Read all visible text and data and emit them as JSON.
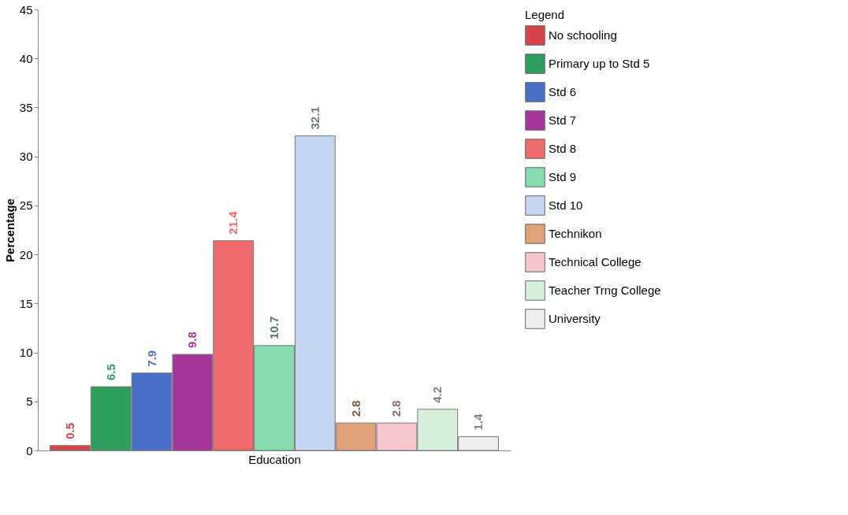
{
  "chart_data": {
    "type": "bar",
    "xlabel": "Education",
    "ylabel": "Percentage",
    "legend_title": "Legend",
    "categories": [
      null,
      null,
      null,
      null,
      null,
      null,
      null,
      null,
      null,
      null,
      null
    ],
    "series": [
      {
        "name": "No schooling",
        "color": "#d9434a",
        "values": [
          0.5,
          null,
          null,
          null,
          null,
          null,
          null,
          null,
          null,
          null,
          null
        ]
      },
      {
        "name": "Primary up to Std 5",
        "color": "#2e9e5e",
        "values": [
          null,
          6.5,
          null,
          null,
          null,
          null,
          null,
          null,
          null,
          null,
          null
        ]
      },
      {
        "name": "Std 6",
        "color": "#4a6fc9",
        "values": [
          null,
          null,
          7.9,
          null,
          null,
          null,
          null,
          null,
          null,
          null,
          null
        ]
      },
      {
        "name": "Std 7",
        "color": "#a6379a",
        "values": [
          null,
          null,
          null,
          9.8,
          null,
          null,
          null,
          null,
          null,
          null,
          null
        ]
      },
      {
        "name": "Std 8",
        "color": "#ef6b6b",
        "values": [
          null,
          null,
          null,
          null,
          21.4,
          null,
          null,
          null,
          null,
          null,
          null
        ]
      },
      {
        "name": "Std 9",
        "color": "#86dcae",
        "values": [
          null,
          null,
          null,
          null,
          null,
          10.7,
          null,
          null,
          null,
          null,
          null
        ]
      },
      {
        "name": "Std 10",
        "color": "#c6d6f2",
        "values": [
          null,
          null,
          null,
          null,
          null,
          null,
          32.1,
          null,
          null,
          null,
          null
        ]
      },
      {
        "name": "Technikon",
        "color": "#e0a07a",
        "values": [
          null,
          null,
          null,
          null,
          null,
          null,
          null,
          2.8,
          null,
          null,
          null
        ]
      },
      {
        "name": "Technical College",
        "color": "#f7c6cc",
        "values": [
          null,
          null,
          null,
          null,
          null,
          null,
          null,
          null,
          2.8,
          null,
          null
        ]
      },
      {
        "name": "Teacher Trng College",
        "color": "#d8efdc",
        "values": [
          null,
          null,
          null,
          null,
          null,
          null,
          null,
          null,
          null,
          4.2,
          null
        ]
      },
      {
        "name": "University",
        "color": "#eeeeee",
        "values": [
          null,
          null,
          null,
          null,
          null,
          null,
          null,
          null,
          null,
          null,
          1.4
        ]
      }
    ],
    "ylim": [
      0,
      45
    ],
    "yticks": [
      0,
      5,
      10,
      15,
      20,
      25,
      30,
      35,
      40,
      45
    ],
    "data_labels": true,
    "legend": "right",
    "tick_labels": "y",
    "grid": false
  }
}
